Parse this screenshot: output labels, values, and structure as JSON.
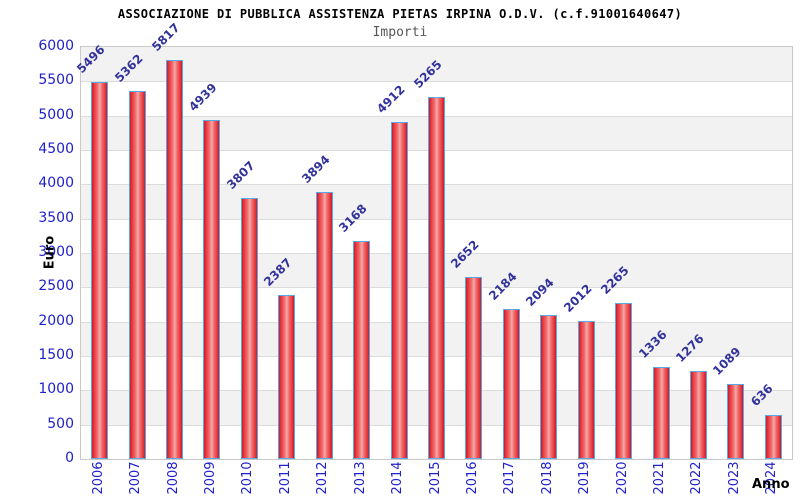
{
  "header": {
    "title": "ASSOCIAZIONE DI PUBBLICA ASSISTENZA PIETAS IRPINA O.D.V. (c.f.91001640647)",
    "subtitle": "Importi"
  },
  "chart_data": {
    "type": "bar",
    "title": "ASSOCIAZIONE DI PUBBLICA ASSISTENZA PIETAS IRPINA O.D.V. (c.f.91001640647)",
    "subtitle": "Importi",
    "categories": [
      "2006",
      "2007",
      "2008",
      "2009",
      "2010",
      "2011",
      "2012",
      "2013",
      "2014",
      "2015",
      "2016",
      "2017",
      "2018",
      "2019",
      "2020",
      "2021",
      "2022",
      "2023",
      "2024"
    ],
    "values": [
      5496,
      5362,
      5817,
      4939,
      3807,
      2387,
      3894,
      3168,
      4912,
      5265,
      2652,
      2184,
      2094,
      2012,
      2265,
      1336,
      1276,
      1089,
      636
    ],
    "xlabel": "Anno",
    "ylabel": "Euro",
    "ylim": [
      0,
      6000
    ],
    "ytick_step": 500,
    "yticks": [
      0,
      500,
      1000,
      1500,
      2000,
      2500,
      3000,
      3500,
      4000,
      4500,
      5000,
      5500,
      6000
    ],
    "grid": "horizontal-bands-alternating",
    "legend": "none",
    "value_labels": "shown-rotated-45deg",
    "colors": {
      "bar_fill": "#e8333d",
      "bar_highlight": "#f7a8a8",
      "bar_border": "#57a9e8",
      "tick_label": "#2020cc",
      "value_label": "#32329b",
      "band_gray": "#f2f2f2",
      "band_white": "#ffffff",
      "grid_line": "#dcdcdc",
      "plot_border": "#c9c9c9",
      "title_color": "#000000",
      "subtitle_color": "#585858"
    }
  }
}
